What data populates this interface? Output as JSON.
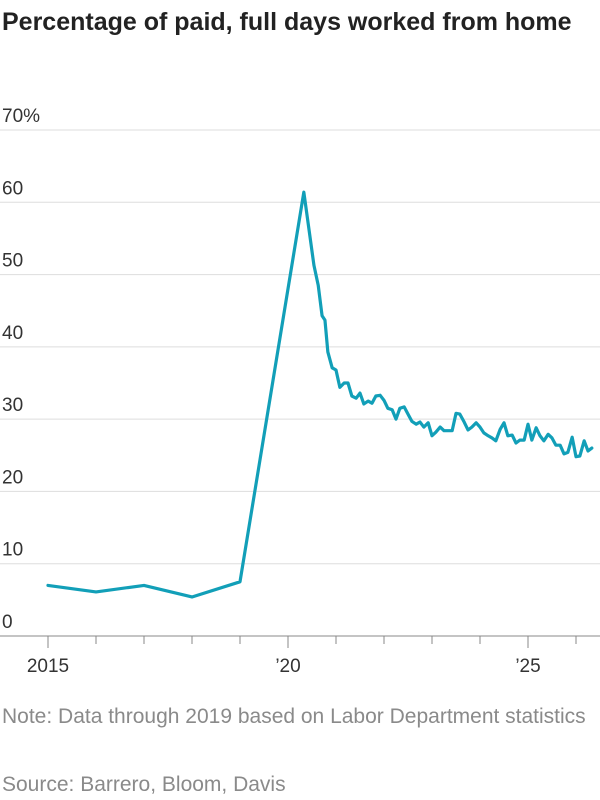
{
  "chart_data": {
    "type": "line",
    "title": "Percentage of paid, full days worked from home",
    "note": "Note: Data through 2019 based on Labor Department statistics",
    "source": "Source: Barrero, Bloom, Davis",
    "color": "#129fb8",
    "x": [
      2015,
      2016,
      2017,
      2018,
      2019,
      2020.33,
      2020.54,
      2020.63,
      2020.71,
      2020.77,
      2020.83,
      2020.92,
      2021.0,
      2021.08,
      2021.17,
      2021.25,
      2021.33,
      2021.42,
      2021.5,
      2021.58,
      2021.67,
      2021.75,
      2021.83,
      2021.92,
      2022.0,
      2022.08,
      2022.17,
      2022.25,
      2022.33,
      2022.42,
      2022.5,
      2022.58,
      2022.67,
      2022.75,
      2022.83,
      2022.92,
      2023.0,
      2023.08,
      2023.17,
      2023.25,
      2023.33,
      2023.42,
      2023.5,
      2023.58,
      2023.67,
      2023.75,
      2023.83,
      2023.92,
      2024.0,
      2024.08,
      2024.17,
      2024.25,
      2024.33,
      2024.42,
      2024.5,
      2024.58,
      2024.67,
      2024.75,
      2024.83,
      2024.92,
      2025.0,
      2025.08,
      2025.17,
      2025.25,
      2025.33,
      2025.42,
      2025.5,
      2025.58,
      2025.67,
      2025.75,
      2025.83,
      2025.92,
      2026.0,
      2026.08,
      2026.17,
      2026.25,
      2026.33
    ],
    "values": [
      7.0,
      6.1,
      7.0,
      5.4,
      7.5,
      61.4,
      51.3,
      48.5,
      44.3,
      43.7,
      39.3,
      37.1,
      36.8,
      34.4,
      35.0,
      35.0,
      33.2,
      32.9,
      33.6,
      32.1,
      32.5,
      32.2,
      33.2,
      33.3,
      32.6,
      31.5,
      31.3,
      30.0,
      31.5,
      31.7,
      30.7,
      29.7,
      29.3,
      29.6,
      28.9,
      29.5,
      27.7,
      28.2,
      28.9,
      28.4,
      28.4,
      28.4,
      30.8,
      30.7,
      29.6,
      28.5,
      28.9,
      29.5,
      28.9,
      28.1,
      27.7,
      27.4,
      27.0,
      28.6,
      29.5,
      27.7,
      27.8,
      26.7,
      27.1,
      27.1,
      29.3,
      27.1,
      28.8,
      27.7,
      27.0,
      27.9,
      27.4,
      26.4,
      26.4,
      25.2,
      25.4,
      27.5,
      24.8,
      24.9,
      27.0,
      25.6,
      26.0
    ],
    "xlim": [
      2014,
      2026.5
    ],
    "xticks": [
      {
        "value": 2015,
        "label": "2015"
      },
      {
        "value": 2020,
        "label": "’20"
      },
      {
        "value": 2025,
        "label": "’25"
      }
    ],
    "xminorticks": [
      2016,
      2017,
      2018,
      2019,
      2021,
      2022,
      2023,
      2024,
      2026
    ],
    "ylim": [
      0,
      70
    ],
    "yticks": [
      0,
      10,
      20,
      30,
      40,
      50,
      60,
      {
        "value": 70,
        "label": "70%"
      }
    ],
    "grid": true
  }
}
